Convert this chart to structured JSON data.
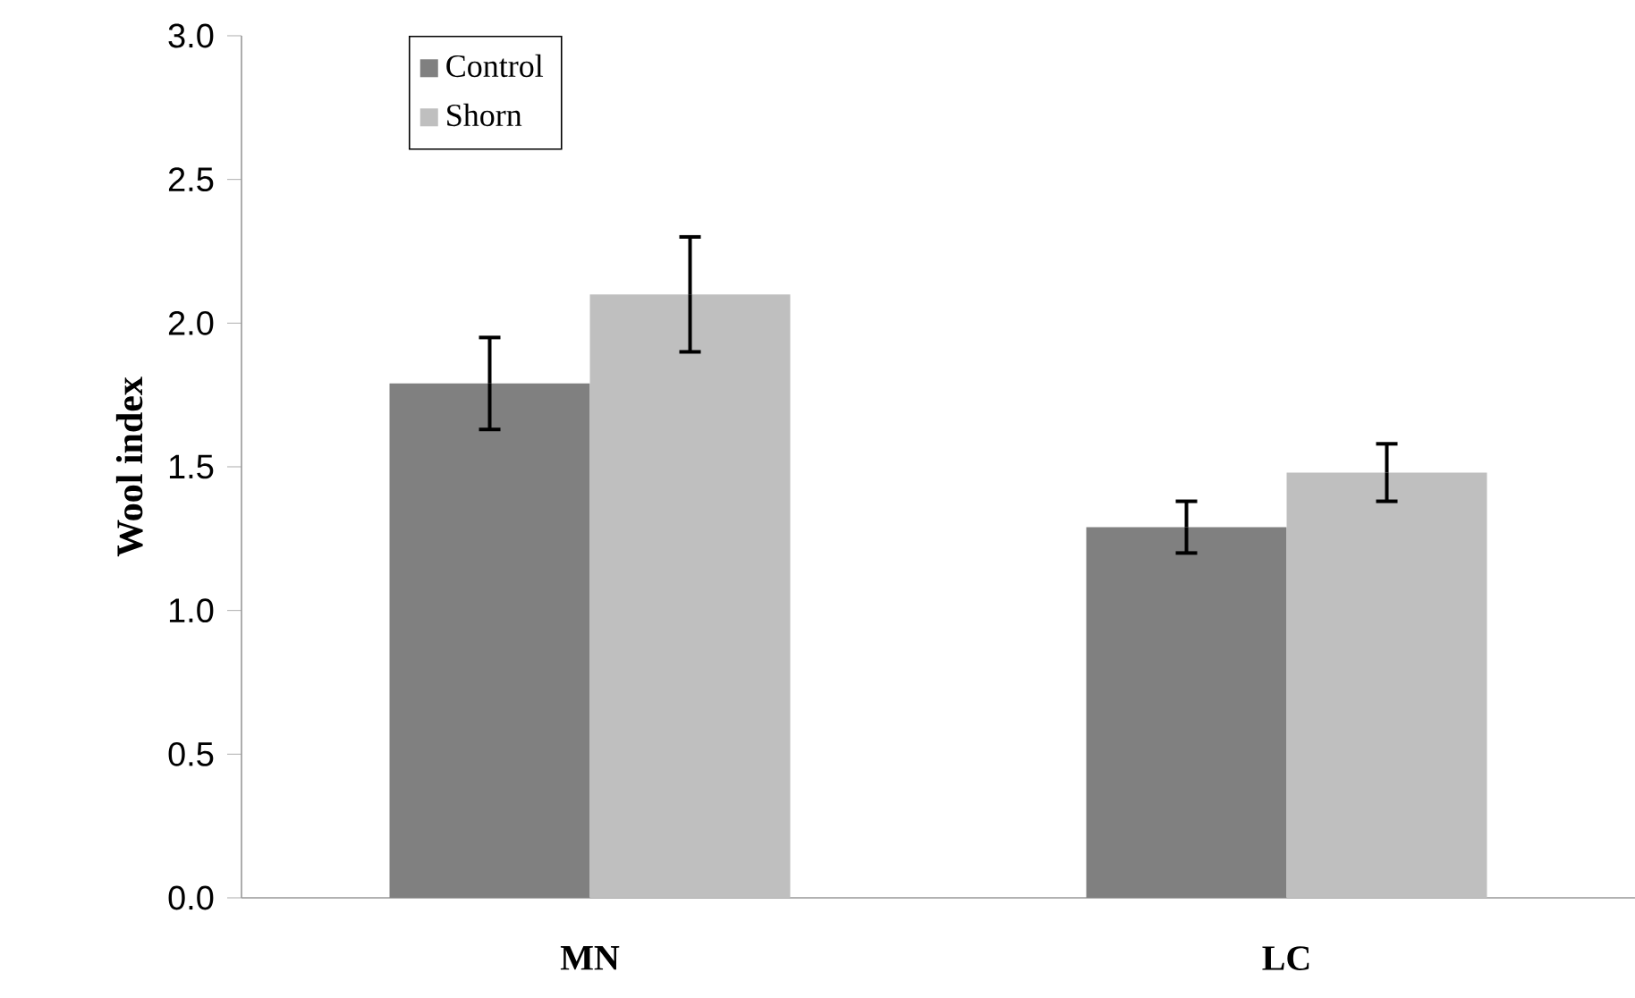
{
  "chart_data": {
    "type": "bar",
    "ylabel": "Wool index",
    "categories": [
      "MN",
      "LC"
    ],
    "series": [
      {
        "name": "Control",
        "color": "#808080",
        "values": [
          1.79,
          1.29
        ],
        "errors": [
          0.16,
          0.09
        ]
      },
      {
        "name": "Shorn",
        "color": "#bfbfbf",
        "values": [
          2.1,
          1.48
        ],
        "errors": [
          0.2,
          0.1
        ]
      }
    ],
    "ylim": [
      0,
      3
    ],
    "yticks": [
      {
        "value": 0,
        "label": "0.0"
      },
      {
        "value": 0.5,
        "label": "0.5"
      },
      {
        "value": 1,
        "label": "1.0"
      },
      {
        "value": 1.5,
        "label": "1.5"
      },
      {
        "value": 2,
        "label": "2.0"
      },
      {
        "value": 2.5,
        "label": "2.5"
      },
      {
        "value": 3,
        "label": "3.0"
      }
    ],
    "legend": "top left"
  }
}
